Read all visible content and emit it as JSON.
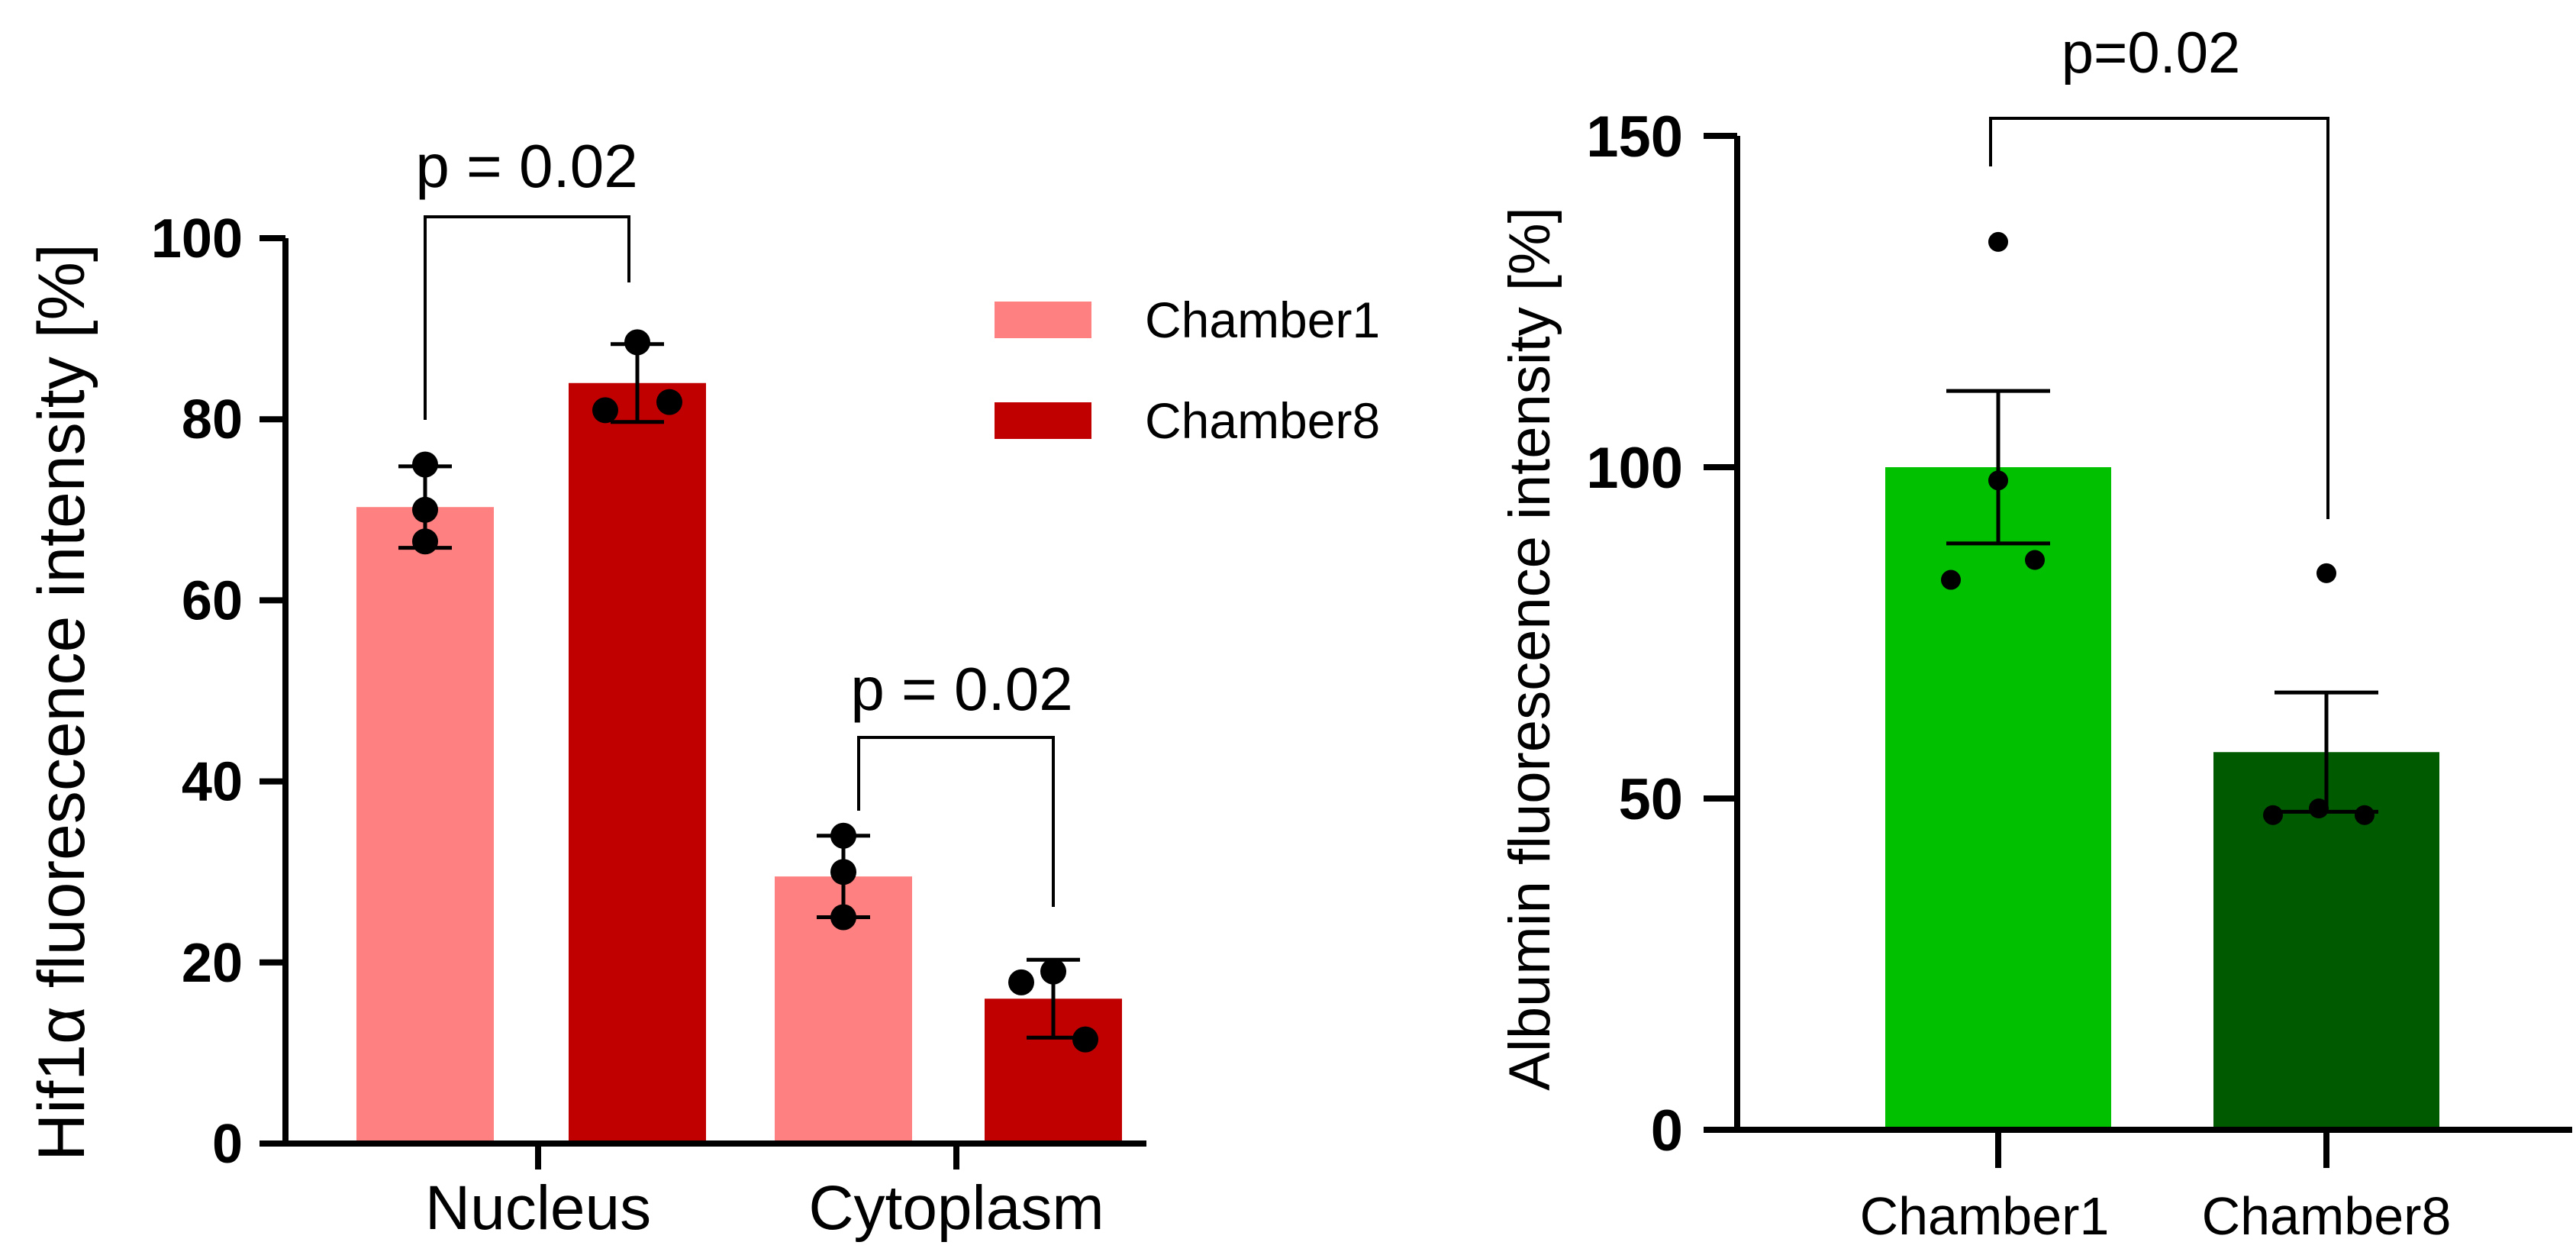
{
  "chart_data": [
    {
      "type": "bar",
      "ylabel": "Hif1α fluorescence intensity [%]",
      "ylim": [
        0,
        100
      ],
      "yticks": [
        0,
        20,
        40,
        60,
        80,
        100
      ],
      "categories": [
        "Nucleus",
        "Cytoplasm"
      ],
      "series": [
        {
          "name": "Chamber1",
          "color": "#ff8080",
          "values": [
            70.3,
            29.5
          ],
          "error": [
            4.5,
            4.5
          ],
          "points": [
            [
              75,
              70,
              66.5
            ],
            [
              34,
              30,
              25
            ]
          ]
        },
        {
          "name": "Chamber8",
          "color": "#c00000",
          "values": [
            84,
            16
          ],
          "error": [
            4.3,
            4.3
          ],
          "points": [
            [
              88.5,
              81,
              81.9
            ],
            [
              19,
              17.8,
              11.5
            ]
          ]
        }
      ],
      "legend_position": "top-right",
      "annotations": [
        {
          "label": "p = 0.02",
          "category": "Nucleus"
        },
        {
          "label": "p = 0.02",
          "category": "Cytoplasm"
        }
      ]
    },
    {
      "type": "bar",
      "ylabel": "Albumin fluorescence intensity [%]",
      "ylim": [
        0,
        150
      ],
      "yticks": [
        0,
        50,
        100,
        150
      ],
      "categories": [
        "Chamber1",
        "Chamber8"
      ],
      "colors": [
        "#00c000",
        "#005a00"
      ],
      "values": [
        100,
        57
      ],
      "error": [
        11.5,
        9
      ],
      "points": [
        [
          134,
          98,
          83,
          86
        ],
        [
          84,
          47.5,
          48.5,
          47.5
        ]
      ],
      "annotations": [
        {
          "label": "p=0.02"
        }
      ]
    }
  ]
}
